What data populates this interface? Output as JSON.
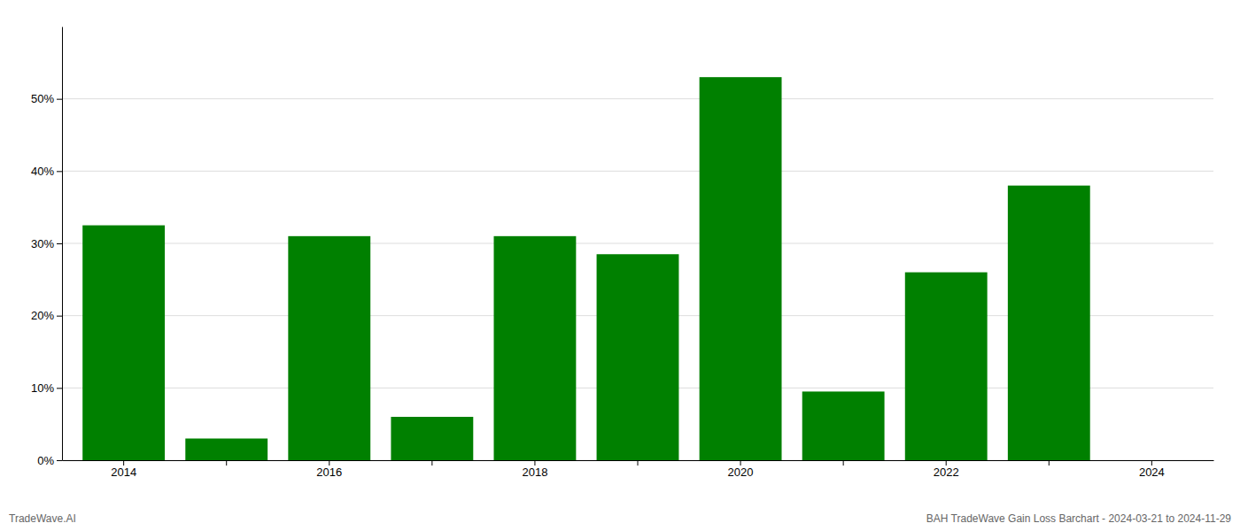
{
  "chart_data": {
    "type": "bar",
    "categories": [
      "2014",
      null,
      "2016",
      null,
      "2018",
      null,
      "2020",
      null,
      "2022",
      null,
      "2024"
    ],
    "values": [
      32.5,
      3.0,
      31.0,
      6.0,
      31.0,
      28.5,
      53.0,
      9.5,
      26.0,
      38.0,
      null
    ],
    "color": "#008000",
    "ylim": [
      0,
      60
    ],
    "yticks": [
      {
        "value": 0,
        "label": "0%"
      },
      {
        "value": 10,
        "label": "10%"
      },
      {
        "value": 20,
        "label": "20%"
      },
      {
        "value": 30,
        "label": "30%"
      },
      {
        "value": 40,
        "label": "40%"
      },
      {
        "value": 50,
        "label": "50%"
      }
    ],
    "grid": true,
    "annotations": [
      "TradeWave.AI",
      "BAH TradeWave Gain Loss Barchart - 2024-03-21 to 2024-11-29"
    ]
  }
}
